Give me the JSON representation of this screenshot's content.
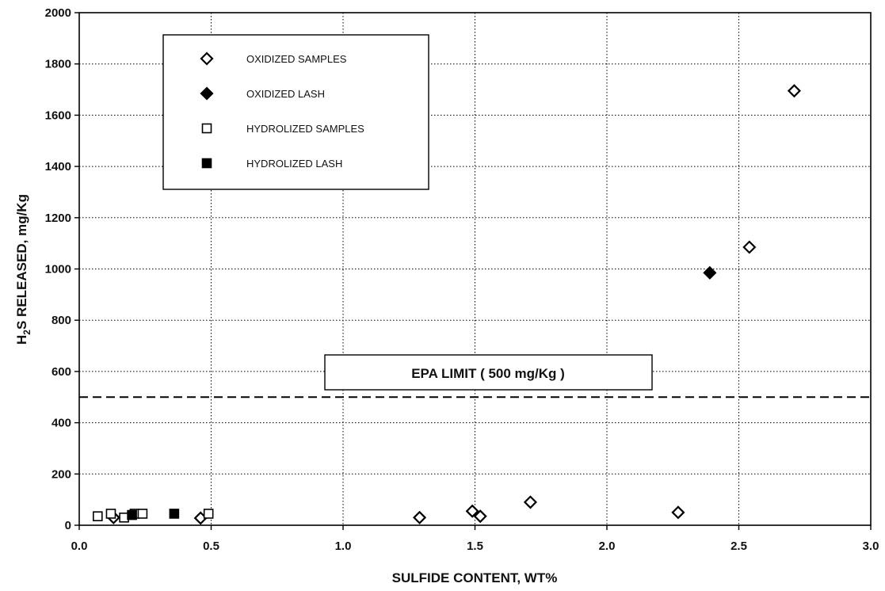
{
  "chart_data": {
    "type": "scatter",
    "xlabel": "SULFIDE CONTENT,  WT%",
    "ylabel_parts": {
      "before": "H",
      "sub": "2",
      "after": "S RELEASED,  mg/Kg"
    },
    "xlim": [
      0.0,
      3.0
    ],
    "ylim": [
      0,
      2000
    ],
    "x_ticks": [
      "0.0",
      "0.5",
      "1.0",
      "1.5",
      "2.0",
      "2.5",
      "3.0"
    ],
    "y_ticks": [
      "0",
      "200",
      "400",
      "600",
      "800",
      "1000",
      "1200",
      "1400",
      "1600",
      "1800",
      "2000"
    ],
    "grid": true,
    "legend_position": "top-left",
    "series": [
      {
        "name": "OXIDIZED SAMPLES",
        "marker": "open-diamond",
        "points": [
          [
            0.13,
            30
          ],
          [
            0.46,
            28
          ],
          [
            1.29,
            30
          ],
          [
            1.49,
            55
          ],
          [
            1.52,
            35
          ],
          [
            1.71,
            90
          ],
          [
            2.27,
            50
          ],
          [
            2.54,
            1085
          ],
          [
            2.71,
            1695
          ]
        ]
      },
      {
        "name": "OXIDIZED LASH",
        "marker": "filled-diamond",
        "points": [
          [
            2.39,
            985
          ]
        ]
      },
      {
        "name": "HYDROLIZED SAMPLES",
        "marker": "open-square",
        "points": [
          [
            0.07,
            35
          ],
          [
            0.12,
            45
          ],
          [
            0.17,
            30
          ],
          [
            0.21,
            45
          ],
          [
            0.24,
            45
          ],
          [
            0.49,
            45
          ]
        ]
      },
      {
        "name": "HYDROLIZED LASH",
        "marker": "filled-square",
        "points": [
          [
            0.2,
            40
          ],
          [
            0.36,
            45
          ]
        ]
      }
    ],
    "reference_line": {
      "y": 500,
      "style": "dashed",
      "label": "EPA LIMIT ( 500 mg/Kg )"
    }
  }
}
